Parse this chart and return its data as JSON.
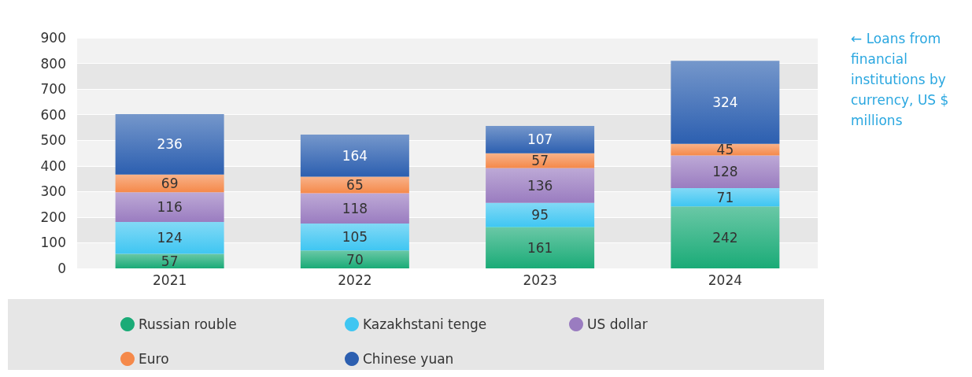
{
  "chart_data": {
    "type": "bar",
    "stacked": true,
    "categories": [
      "2021",
      "2022",
      "2023",
      "2024"
    ],
    "series": [
      {
        "name": "Russian rouble",
        "color": "#1aab77",
        "values": [
          57,
          70,
          161,
          242
        ]
      },
      {
        "name": "Kazakhstani tenge",
        "color": "#3fc6f2",
        "values": [
          124,
          105,
          95,
          71
        ]
      },
      {
        "name": "US dollar",
        "color": "#9a7cc0",
        "values": [
          116,
          118,
          136,
          128
        ]
      },
      {
        "name": "Euro",
        "color": "#f5894a",
        "values": [
          69,
          65,
          57,
          45
        ]
      },
      {
        "name": "Chinese yuan",
        "color": "#2c5fb0",
        "values": [
          236,
          164,
          107,
          324
        ]
      }
    ],
    "ylim": [
      0,
      900
    ],
    "yticks": [
      0,
      100,
      200,
      300,
      400,
      500,
      600,
      700,
      800,
      900
    ],
    "grid": "y",
    "legend": "bottom",
    "data_labels": true,
    "annotations": [
      "← Loans from financial institutions by currency, US $ millions"
    ]
  }
}
